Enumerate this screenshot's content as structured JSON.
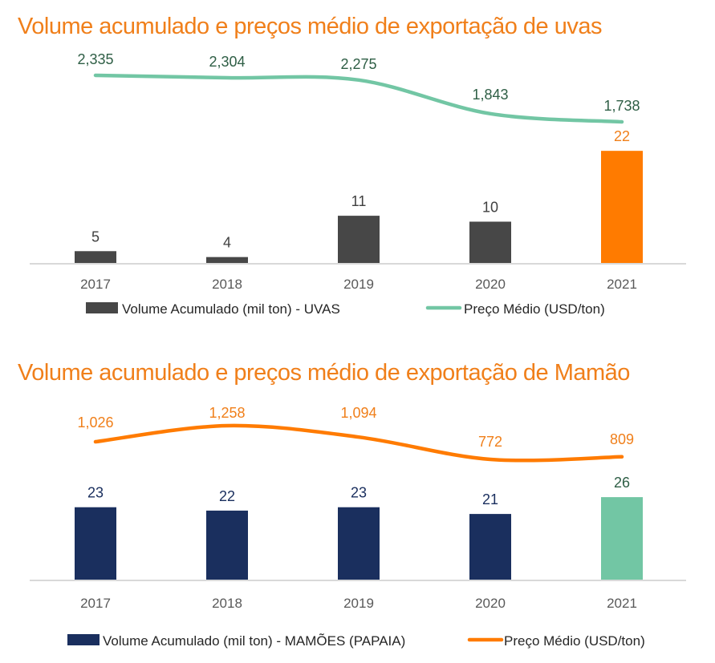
{
  "chart_data": [
    {
      "type": "bar+line",
      "title": "Volume acumulado e preços médio de exportação de uvas",
      "categories": [
        "2017",
        "2018",
        "2019",
        "2020",
        "2021"
      ],
      "series": [
        {
          "name": "Volume Acumulado (mil ton) - UVAS",
          "type": "bar",
          "values": [
            5,
            4,
            11,
            10,
            22
          ],
          "color": "#474747",
          "highlight_color": "#ff7b00",
          "label_color": "#404040",
          "highlight_label_color": "#f07f1a"
        },
        {
          "name": "Preço Médio (USD/ton)",
          "type": "line",
          "values": [
            2335,
            2304,
            2275,
            1843,
            1738
          ],
          "labels": [
            "2,335",
            "2,304",
            "2,275",
            "1,843",
            "1,738"
          ],
          "color": "#72c6a4",
          "label_color": "#2e5e45"
        }
      ],
      "grid": false,
      "legend": "bottom"
    },
    {
      "type": "bar+line",
      "title": "Volume acumulado e preços médio de exportação de Mamão",
      "categories": [
        "2017",
        "2018",
        "2019",
        "2020",
        "2021"
      ],
      "series": [
        {
          "name": "Volume Acumulado (mil ton) - MAMÕES (PAPAIA)",
          "type": "bar",
          "values": [
            23,
            22,
            23,
            21,
            26
          ],
          "color": "#1a2f5e",
          "highlight_color": "#72c6a4",
          "label_color": "#1a2f5e",
          "highlight_label_color": "#2e5e45"
        },
        {
          "name": "Preço Médio (USD/ton)",
          "type": "line",
          "values": [
            1026,
            1258,
            1094,
            772,
            809
          ],
          "labels": [
            "1,026",
            "1,258",
            "1,094",
            "772",
            "809"
          ],
          "color": "#ff7b00",
          "label_color": "#f07f1a"
        }
      ],
      "grid": false,
      "legend": "bottom"
    }
  ],
  "title_color": "#f07f1a"
}
